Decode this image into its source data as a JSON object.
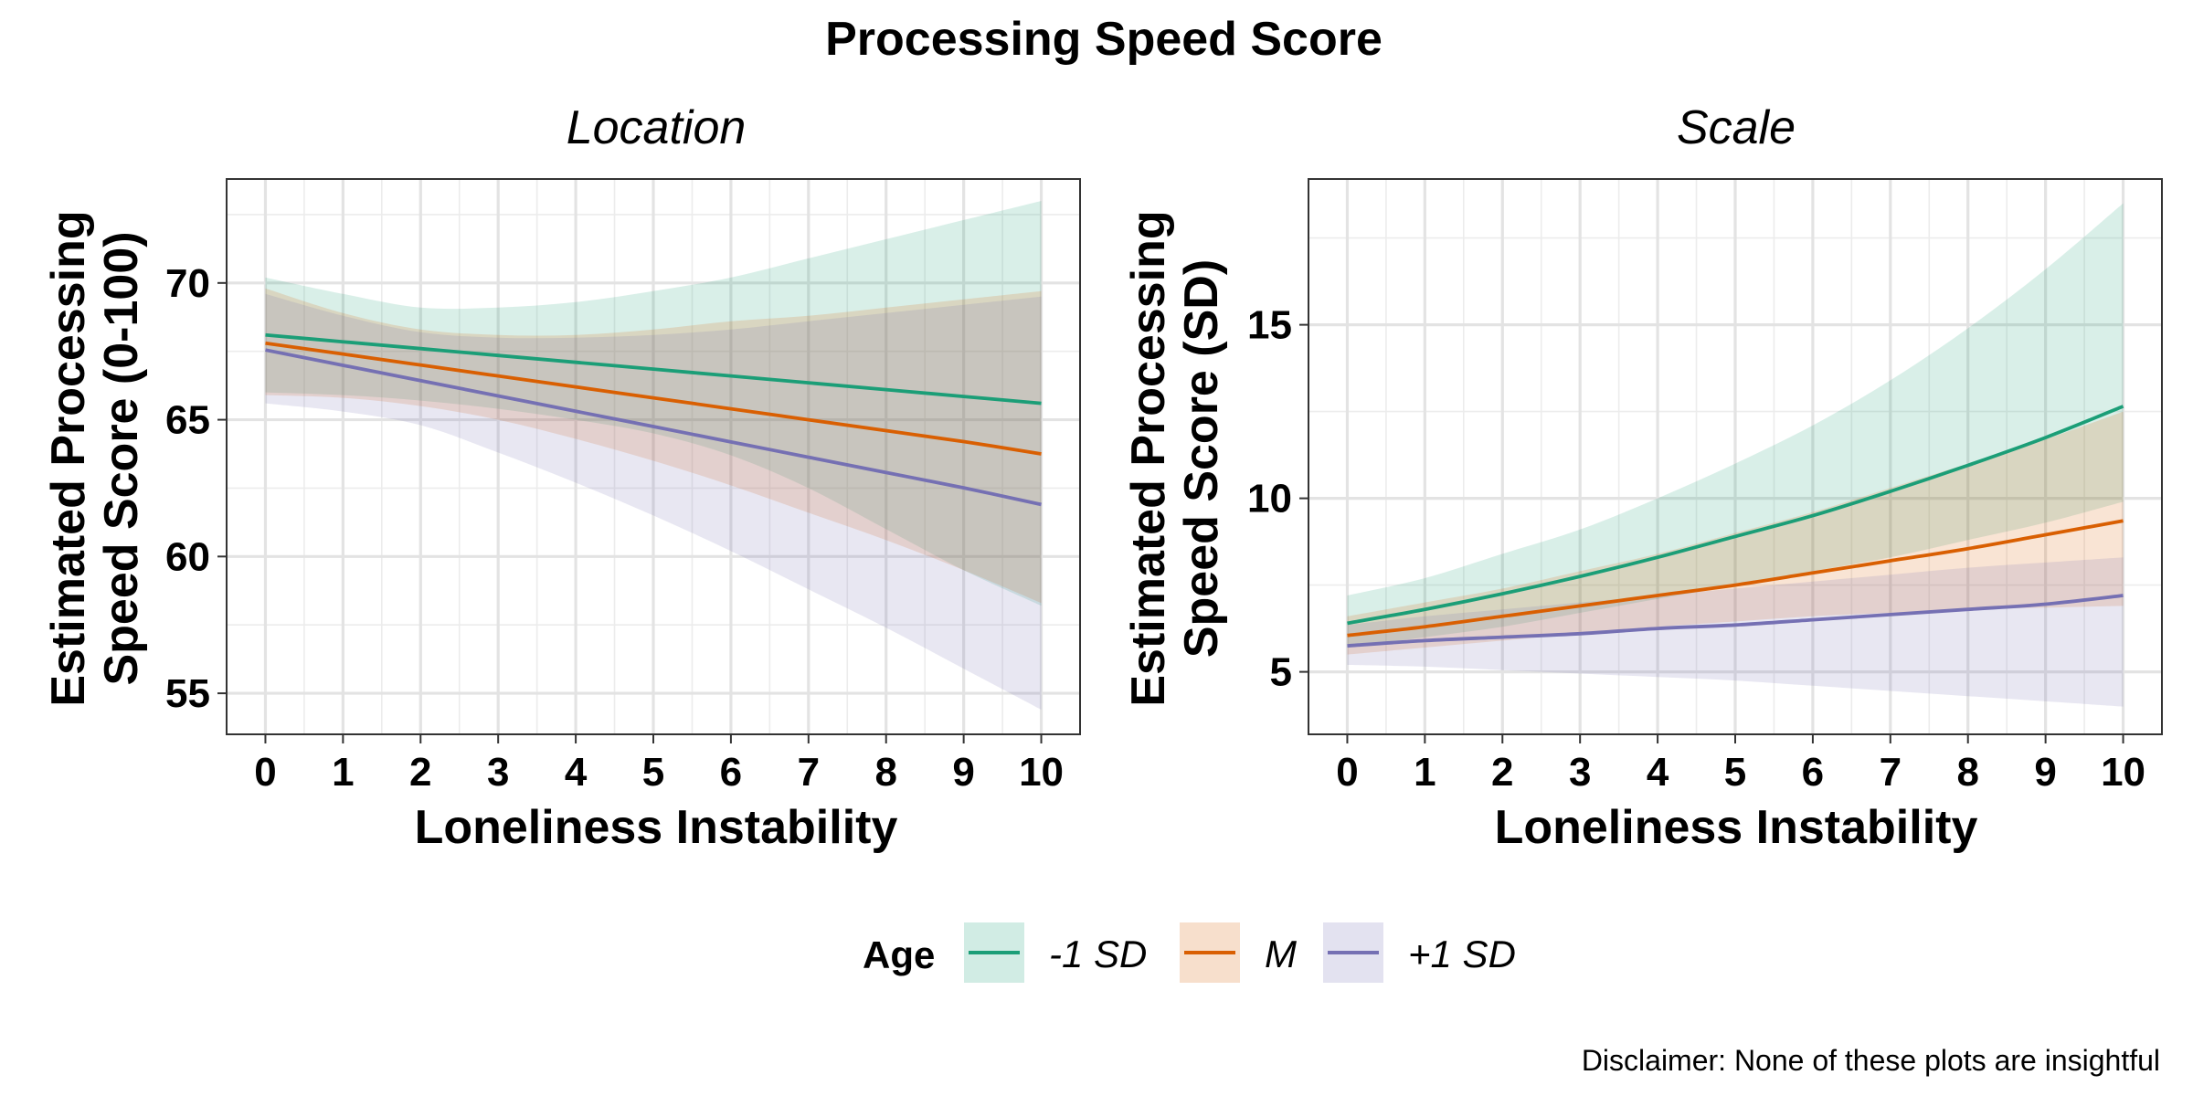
{
  "title": "Processing Speed Score",
  "caption": "Disclaimer: None of these plots are insightful",
  "legend": {
    "title": "Age",
    "position": "bottom",
    "entries": [
      {
        "label": "-1 SD",
        "color": "#1b9e77"
      },
      {
        "label": "M",
        "color": "#d95f02"
      },
      {
        "label": "+1 SD",
        "color": "#7570b3"
      }
    ]
  },
  "chart_data": [
    {
      "type": "line",
      "panel_title": "Location",
      "xlabel": "Loneliness Instability",
      "ylabel": [
        "Estimated Processing",
        "Speed Score (0-100)"
      ],
      "xlim": [
        -0.5,
        10.5
      ],
      "ylim": [
        53.5,
        73.8
      ],
      "x_ticks": [
        0,
        1,
        2,
        3,
        4,
        5,
        6,
        7,
        8,
        9,
        10
      ],
      "y_ticks": [
        55,
        60,
        65,
        70
      ],
      "grid": true,
      "x": [
        0,
        1,
        2,
        3,
        4,
        5,
        6,
        7,
        8,
        9,
        10
      ],
      "series": [
        {
          "name": "-1 SD",
          "color": "#1b9e77",
          "values": [
            68.1,
            67.85,
            67.6,
            67.35,
            67.1,
            66.85,
            66.6,
            66.35,
            66.1,
            65.85,
            65.6
          ],
          "lower": [
            66.0,
            65.9,
            65.7,
            65.4,
            65.0,
            64.5,
            63.7,
            62.5,
            61.0,
            59.5,
            58.2
          ],
          "upper": [
            70.2,
            69.6,
            69.1,
            69.1,
            69.3,
            69.7,
            70.2,
            70.9,
            71.6,
            72.3,
            73.0
          ]
        },
        {
          "name": "M",
          "color": "#d95f02",
          "values": [
            67.8,
            67.4,
            67.0,
            66.6,
            66.2,
            65.8,
            65.4,
            65.0,
            64.6,
            64.2,
            63.75
          ],
          "lower": [
            65.9,
            65.8,
            65.5,
            65.0,
            64.3,
            63.5,
            62.6,
            61.6,
            60.6,
            59.5,
            58.3
          ],
          "upper": [
            69.8,
            68.9,
            68.3,
            68.1,
            68.1,
            68.3,
            68.6,
            68.8,
            69.1,
            69.4,
            69.7
          ]
        },
        {
          "name": "+1 SD",
          "color": "#7570b3",
          "values": [
            67.55,
            66.99,
            66.43,
            65.87,
            65.31,
            64.75,
            64.19,
            63.63,
            63.07,
            62.51,
            61.9
          ],
          "lower": [
            65.6,
            65.3,
            64.8,
            63.8,
            62.7,
            61.5,
            60.2,
            58.8,
            57.4,
            55.9,
            54.4
          ],
          "upper": [
            69.6,
            68.8,
            68.2,
            68.0,
            68.0,
            68.1,
            68.3,
            68.6,
            68.9,
            69.2,
            69.5
          ]
        }
      ]
    },
    {
      "type": "line",
      "panel_title": "Scale",
      "xlabel": "Loneliness Instability",
      "ylabel": [
        "Estimated Processing",
        "Speed Score (SD)"
      ],
      "xlim": [
        -0.5,
        10.5
      ],
      "ylim": [
        3.2,
        19.2
      ],
      "x_ticks": [
        0,
        1,
        2,
        3,
        4,
        5,
        6,
        7,
        8,
        9,
        10
      ],
      "y_ticks": [
        5,
        10,
        15
      ],
      "grid": true,
      "x": [
        0,
        1,
        2,
        3,
        4,
        5,
        6,
        7,
        8,
        9,
        10
      ],
      "series": [
        {
          "name": "-1 SD",
          "color": "#1b9e77",
          "values": [
            6.4,
            6.8,
            7.25,
            7.75,
            8.3,
            8.9,
            9.5,
            10.2,
            10.95,
            11.75,
            12.65
          ],
          "lower": [
            5.7,
            6.0,
            6.3,
            6.7,
            7.1,
            7.5,
            7.9,
            8.3,
            8.8,
            9.3,
            9.9
          ],
          "upper": [
            7.2,
            7.7,
            8.4,
            9.1,
            10.0,
            11.0,
            12.1,
            13.4,
            14.9,
            16.6,
            18.5
          ]
        },
        {
          "name": "M",
          "color": "#d95f02",
          "values": [
            6.05,
            6.3,
            6.6,
            6.9,
            7.2,
            7.5,
            7.85,
            8.2,
            8.55,
            8.95,
            9.35
          ],
          "lower": [
            5.5,
            5.7,
            5.9,
            6.1,
            6.3,
            6.45,
            6.6,
            6.7,
            6.8,
            6.85,
            6.9
          ],
          "upper": [
            6.6,
            7.0,
            7.4,
            7.9,
            8.4,
            9.0,
            9.6,
            10.3,
            11.0,
            11.7,
            12.5
          ]
        },
        {
          "name": "+1 SD",
          "color": "#7570b3",
          "values": [
            5.75,
            5.9,
            6.0,
            6.1,
            6.25,
            6.35,
            6.5,
            6.65,
            6.8,
            6.95,
            7.2
          ],
          "lower": [
            5.2,
            5.15,
            5.05,
            4.95,
            4.85,
            4.75,
            4.6,
            4.45,
            4.3,
            4.15,
            4.0
          ],
          "upper": [
            6.35,
            6.6,
            6.8,
            7.0,
            7.2,
            7.4,
            7.6,
            7.8,
            8.0,
            8.15,
            8.3
          ]
        }
      ]
    }
  ]
}
